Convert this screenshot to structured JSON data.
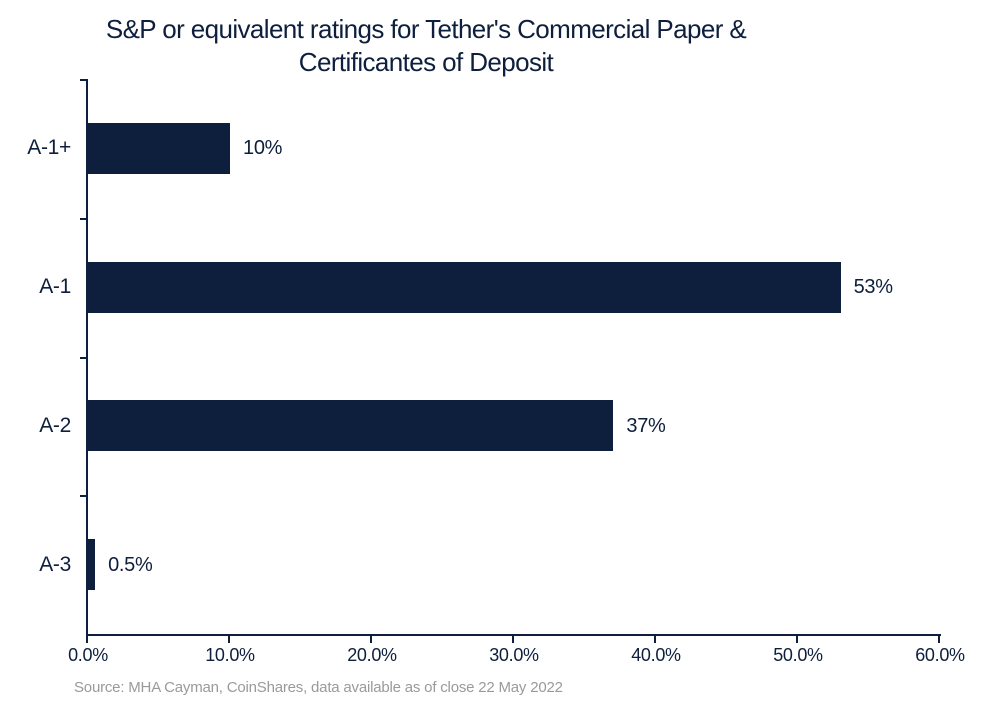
{
  "chart_data": {
    "type": "bar",
    "orientation": "horizontal",
    "title": "S&P or equivalent ratings for Tether's Commercial Paper & Certificantes of Deposit",
    "title_lines": [
      "S&P or equivalent ratings for Tether's Commercial Paper &",
      "Certificantes of Deposit"
    ],
    "categories": [
      "A-1+",
      "A-1",
      "A-2",
      "A-3"
    ],
    "values": [
      10,
      53,
      37,
      0.5
    ],
    "value_labels": [
      "10%",
      "53%",
      "37%",
      "0.5%"
    ],
    "xlim": [
      0,
      60
    ],
    "x_tick_values": [
      0,
      10,
      20,
      30,
      40,
      50,
      60
    ],
    "x_tick_labels": [
      "0.0%",
      "10.0%",
      "20.0%",
      "30.0%",
      "40.0%",
      "50.0%",
      "60.0%"
    ],
    "grid": "off",
    "legend": "none",
    "bar_color": "#0d1f3d",
    "axis_color": "#0d1f3d",
    "text_color": "#0d1f3d",
    "source_color": "#9a9a9a",
    "source": "Source: MHA Cayman, CoinShares, data available as of close 22 May 2022"
  }
}
